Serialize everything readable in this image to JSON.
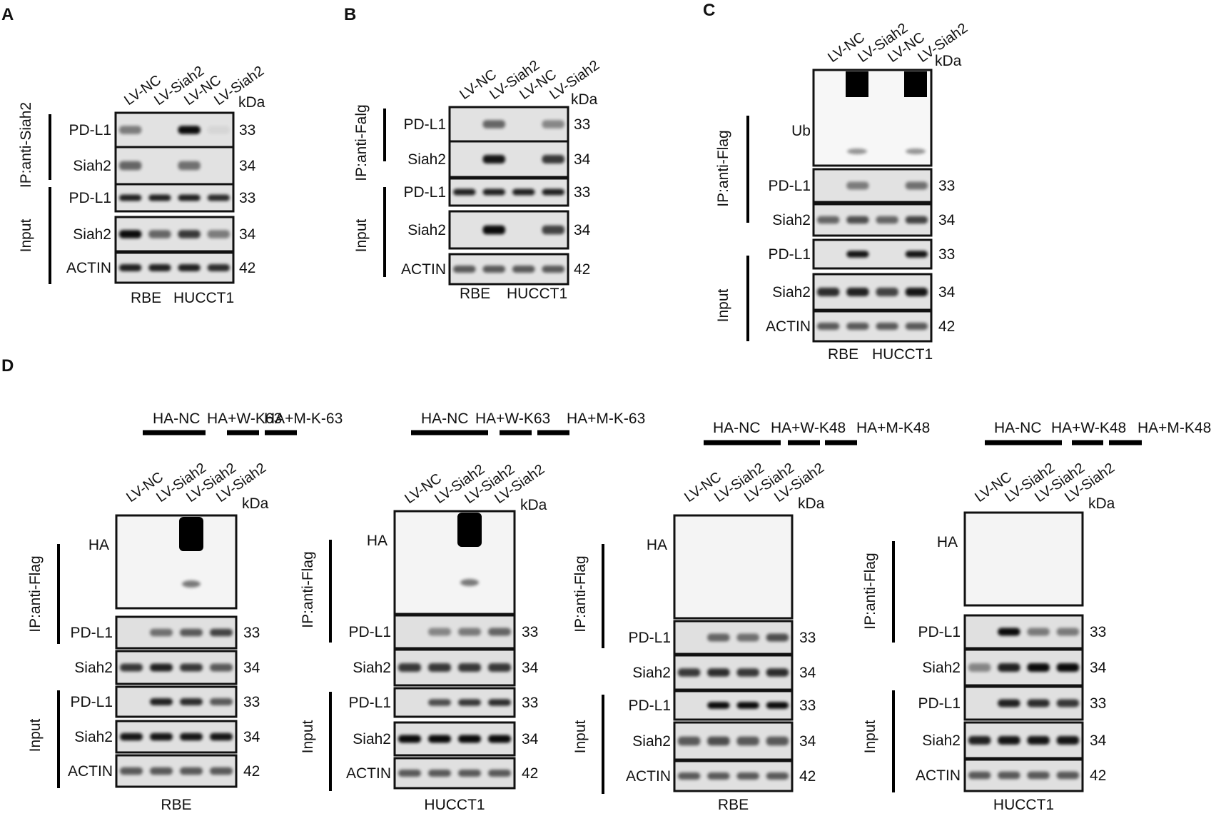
{
  "panelA": {
    "letter": "A",
    "lanes": [
      "LV-NC",
      "LV-Siah2",
      "LV-NC",
      "LV-Siah2"
    ],
    "kda": "kDa",
    "ip_label": "IP:anti-Siah2",
    "input_label": "Input",
    "rows": [
      {
        "label": "PD-L1",
        "mw": "33"
      },
      {
        "label": "Siah2",
        "mw": "34"
      },
      {
        "label": "PD-L1",
        "mw": "33"
      },
      {
        "label": "Siah2",
        "mw": "34"
      },
      {
        "label": "ACTIN",
        "mw": "42"
      }
    ],
    "cells": [
      "RBE",
      "HUCCT1"
    ]
  },
  "panelB": {
    "letter": "B",
    "lanes": [
      "LV-NC",
      "LV-Siah2",
      "LV-NC",
      "LV-Siah2"
    ],
    "kda": "kDa",
    "ip_label": "IP:anti-Falg",
    "input_label": "Input",
    "rows": [
      {
        "label": "PD-L1",
        "mw": "33"
      },
      {
        "label": "Siah2",
        "mw": "34"
      },
      {
        "label": "PD-L1",
        "mw": "33"
      },
      {
        "label": "Siah2",
        "mw": "34"
      },
      {
        "label": "ACTIN",
        "mw": "42"
      }
    ],
    "cells": [
      "RBE",
      "HUCCT1"
    ]
  },
  "panelC": {
    "letter": "C",
    "lanes": [
      "LV-NC",
      "LV-Siah2",
      "LV-NC",
      "LV-Siah2"
    ],
    "kda": "kDa",
    "ip_label": "IP:anti-Flag",
    "input_label": "Input",
    "rows": [
      {
        "label": "Ub",
        "mw": ""
      },
      {
        "label": "PD-L1",
        "mw": "33"
      },
      {
        "label": "Siah2",
        "mw": "34"
      },
      {
        "label": "PD-L1",
        "mw": "33"
      },
      {
        "label": "Siah2",
        "mw": "34"
      },
      {
        "label": "ACTIN",
        "mw": "42"
      }
    ],
    "cells": [
      "RBE",
      "HUCCT1"
    ]
  },
  "panelD": {
    "letter": "D",
    "subpanels": [
      {
        "groups": [
          "HA-NC",
          "HA+W-K63",
          "HA+M-K-63"
        ],
        "lanes": [
          "LV-NC",
          "LV-Siah2",
          "LV-Siah2",
          "LV-Siah2"
        ],
        "kda": "kDa",
        "ip_label": "IP:anti-Flag",
        "input_label": "Input",
        "rows": [
          {
            "label": "HA",
            "mw": ""
          },
          {
            "label": "PD-L1",
            "mw": "33"
          },
          {
            "label": "Siah2",
            "mw": "34"
          },
          {
            "label": "PD-L1",
            "mw": "33"
          },
          {
            "label": "Siah2",
            "mw": "34"
          },
          {
            "label": "ACTIN",
            "mw": "42"
          }
        ],
        "cell": "RBE"
      },
      {
        "groups": [
          "HA-NC",
          "HA+W-K63",
          "HA+M-K-63"
        ],
        "lanes": [
          "LV-NC",
          "LV-Siah2",
          "LV-Siah2",
          "LV-Siah2"
        ],
        "kda": "kDa",
        "ip_label": "IP:anti-Flag",
        "input_label": "Input",
        "rows": [
          {
            "label": "HA",
            "mw": ""
          },
          {
            "label": "PD-L1",
            "mw": "33"
          },
          {
            "label": "Siah2",
            "mw": "34"
          },
          {
            "label": "PD-L1",
            "mw": "33"
          },
          {
            "label": "Siah2",
            "mw": "34"
          },
          {
            "label": "ACTIN",
            "mw": "42"
          }
        ],
        "cell": "HUCCT1"
      },
      {
        "groups": [
          "HA-NC",
          "HA+W-K48",
          "HA+M-K48"
        ],
        "lanes": [
          "LV-NC",
          "LV-Siah2",
          "LV-Siah2",
          "LV-Siah2"
        ],
        "kda": "kDa",
        "ip_label": "IP:anti-Flag",
        "input_label": "Input",
        "rows": [
          {
            "label": "HA",
            "mw": ""
          },
          {
            "label": "PD-L1",
            "mw": "33"
          },
          {
            "label": "Siah2",
            "mw": "34"
          },
          {
            "label": "PD-L1",
            "mw": "33"
          },
          {
            "label": "Siah2",
            "mw": "34"
          },
          {
            "label": "ACTIN",
            "mw": "42"
          }
        ],
        "cell": "RBE"
      },
      {
        "groups": [
          "HA-NC",
          "HA+W-K48",
          "HA+M-K48"
        ],
        "lanes": [
          "LV-NC",
          "LV-Siah2",
          "LV-Siah2",
          "LV-Siah2"
        ],
        "kda": "kDa",
        "ip_label": "IP:anti-Flag",
        "input_label": "Input",
        "rows": [
          {
            "label": "HA",
            "mw": ""
          },
          {
            "label": "PD-L1",
            "mw": "33"
          },
          {
            "label": "Siah2",
            "mw": "34"
          },
          {
            "label": "PD-L1",
            "mw": "33"
          },
          {
            "label": "Siah2",
            "mw": "34"
          },
          {
            "label": "ACTIN",
            "mw": "42"
          }
        ],
        "cell": "HUCCT1"
      }
    ]
  }
}
